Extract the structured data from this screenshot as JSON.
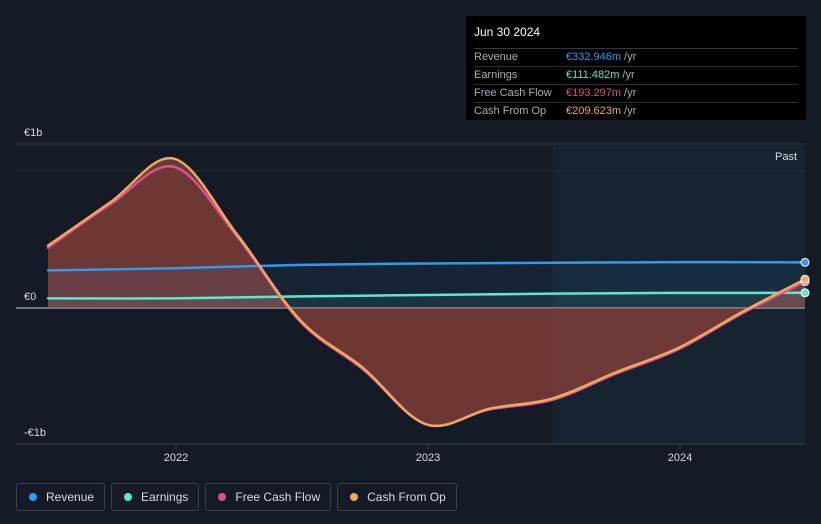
{
  "tooltip": {
    "date": "Jun 30 2024",
    "rows": [
      {
        "label": "Revenue",
        "value": "€332.946m",
        "unit": "/yr",
        "color": "#2f9bf0"
      },
      {
        "label": "Earnings",
        "value": "€111.482m",
        "unit": "/yr",
        "color": "#5ee6d0"
      },
      {
        "label": "Free Cash Flow",
        "value": "€193.297m",
        "unit": "/yr",
        "color": "#e0508a"
      },
      {
        "label": "Cash From Op",
        "value": "€209.623m",
        "unit": "/yr",
        "color": "#f0a860"
      }
    ]
  },
  "legend": [
    {
      "label": "Revenue",
      "color": "#2f9bf0"
    },
    {
      "label": "Earnings",
      "color": "#5ee6d0"
    },
    {
      "label": "Free Cash Flow",
      "color": "#e0508a"
    },
    {
      "label": "Cash From Op",
      "color": "#f0a860"
    }
  ],
  "chart_data": {
    "type": "area",
    "y_tick_labels": [
      "€1b",
      "€0",
      "-€1b"
    ],
    "x_tick_labels": [
      "2022",
      "2023",
      "2024"
    ],
    "ylim": [
      -1000,
      1000
    ],
    "xlim": [
      2021.5,
      2024.5
    ],
    "past_label": "Past",
    "past_start": 2023.5,
    "series": [
      {
        "name": "Revenue",
        "color": "#2f9bf0",
        "x": [
          2021.5,
          2022.0,
          2022.5,
          2023.0,
          2023.5,
          2024.0,
          2024.5
        ],
        "y": [
          275,
          290,
          315,
          325,
          330,
          335,
          333
        ]
      },
      {
        "name": "Earnings",
        "color": "#5ee6d0",
        "x": [
          2021.5,
          2022.0,
          2022.5,
          2023.0,
          2023.5,
          2024.0,
          2024.5
        ],
        "y": [
          70,
          70,
          85,
          95,
          105,
          110,
          111
        ]
      },
      {
        "name": "Free Cash Flow",
        "color": "#e0508a",
        "x": [
          2021.5,
          2021.75,
          2022.0,
          2022.25,
          2022.5,
          2022.75,
          2023.0,
          2023.25,
          2023.5,
          2023.75,
          2024.0,
          2024.25,
          2024.5
        ],
        "y": [
          440,
          760,
          1030,
          520,
          -100,
          -450,
          -850,
          -740,
          -670,
          -480,
          -300,
          -40,
          193
        ]
      },
      {
        "name": "Cash From Op",
        "color": "#f0a860",
        "x": [
          2021.5,
          2021.75,
          2022.0,
          2022.25,
          2022.5,
          2022.75,
          2023.0,
          2023.25,
          2023.5,
          2023.75,
          2024.0,
          2024.25,
          2024.5
        ],
        "y": [
          455,
          775,
          1090,
          535,
          -90,
          -440,
          -850,
          -735,
          -660,
          -470,
          -290,
          -30,
          210
        ]
      }
    ],
    "grid": true,
    "legend_position": "bottom"
  }
}
